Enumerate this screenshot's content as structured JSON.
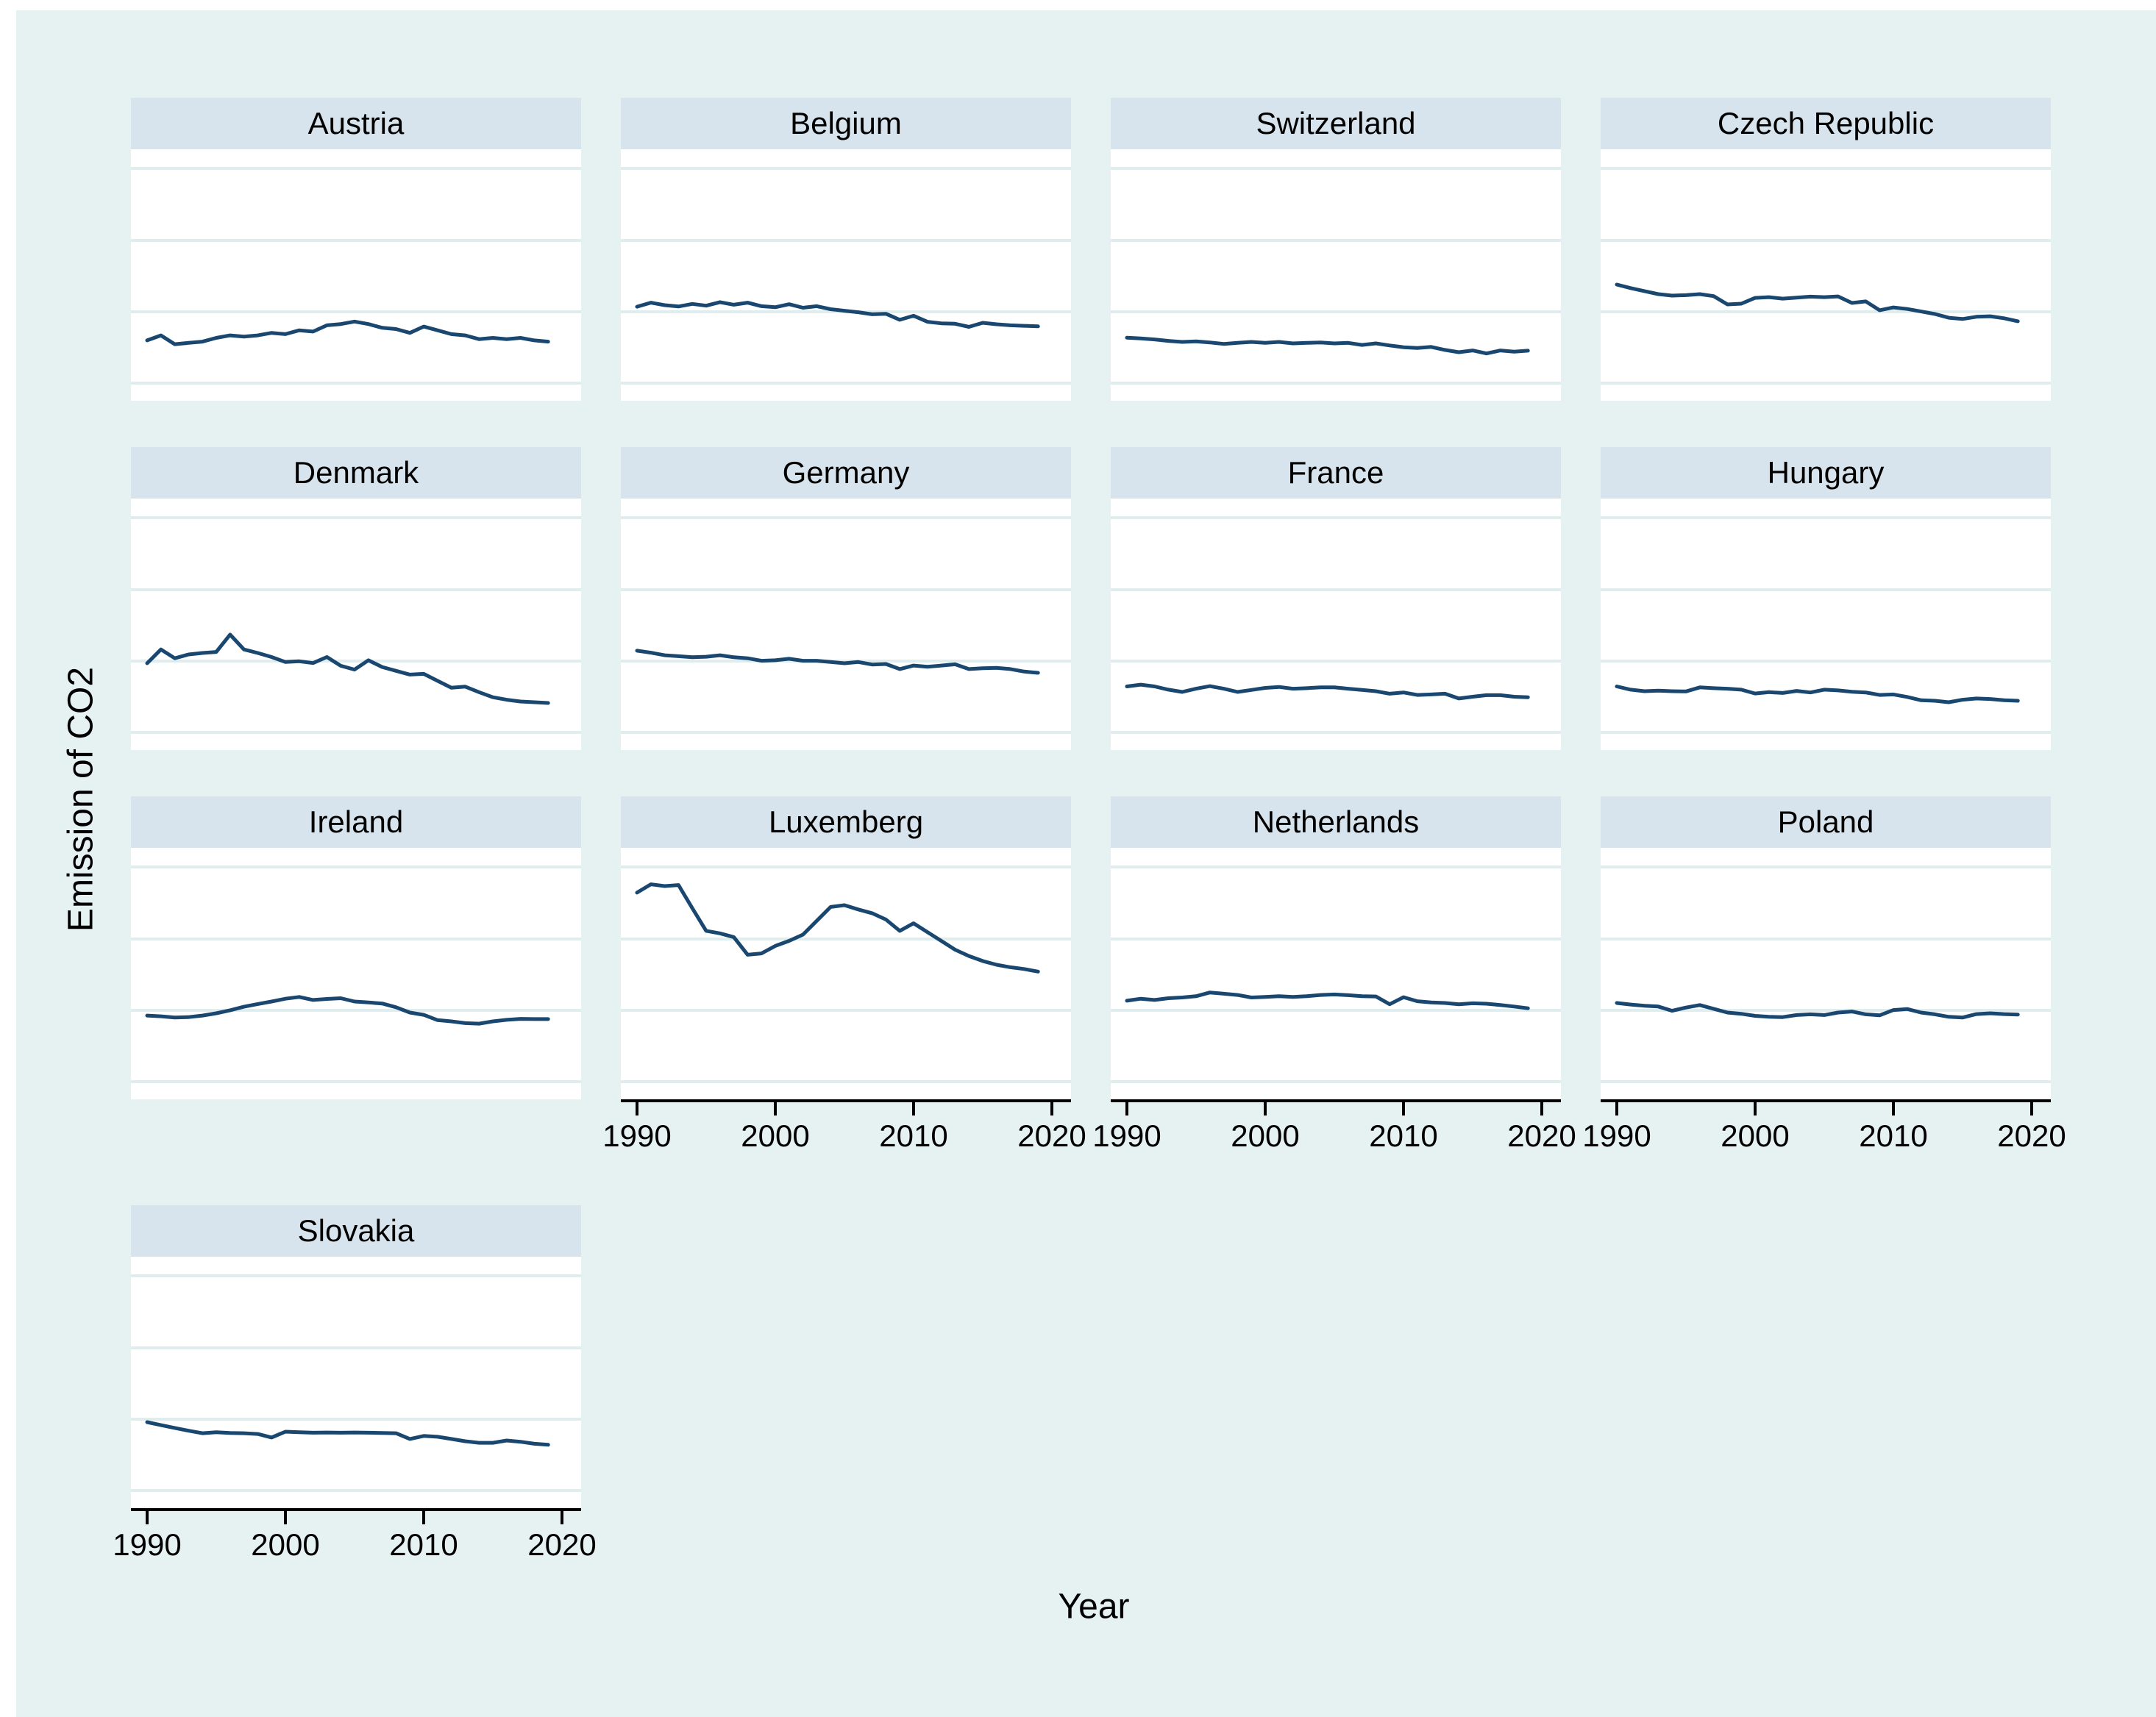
{
  "figure": {
    "y_axis_title": "Emission of CO2",
    "x_axis_title": "Year"
  },
  "colors": {
    "background": "#e6f1f2",
    "panel_header_bg": "#d7e4ee",
    "plot_bg": "#ffffff",
    "gridline": "#e0edef",
    "series_line": "#1a476f",
    "axis": "#000000",
    "text": "#000000"
  },
  "chart_data": {
    "type": "line",
    "title": "",
    "xlabel": "Year",
    "ylabel": "Emission of CO2",
    "layout": "small multiples, 4 columns, one line series per country panel",
    "legend": "none",
    "grid": true,
    "x_ticks": [
      1990,
      2000,
      2010,
      2020
    ],
    "x_range": [
      1990,
      2019
    ],
    "x_step_years": 1,
    "y_note": "y-axis has no tick labels in source image; values below are relative units (0-100 of panel plot height, measured from plot bottom)",
    "ylim": [
      0,
      100
    ],
    "panels": [
      {
        "title": "Austria",
        "values": [
          24,
          26,
          22.5,
          23,
          23.5,
          25,
          26,
          25.5,
          26,
          27,
          26.5,
          28,
          27.5,
          30,
          30.5,
          31.5,
          30.5,
          29,
          28.5,
          27,
          29.5,
          28,
          26.5,
          26,
          24.5,
          25,
          24.5,
          25,
          24,
          23.5
        ]
      },
      {
        "title": "Belgium",
        "values": [
          37.4,
          39,
          38,
          37.5,
          38.5,
          37.8,
          39.2,
          38.2,
          39,
          37.6,
          37.2,
          38.4,
          37,
          37.6,
          36.4,
          35.8,
          35.2,
          34.4,
          34.6,
          32.2,
          33.8,
          31.4,
          30.8,
          30.6,
          29.4,
          31,
          30.4,
          30,
          29.8,
          29.6
        ]
      },
      {
        "title": "Switzerland",
        "values": [
          25.1,
          24.8,
          24.4,
          23.8,
          23.4,
          23.6,
          23.2,
          22.6,
          23,
          23.4,
          23,
          23.4,
          22.8,
          23,
          23.2,
          22.8,
          23,
          22.2,
          22.8,
          22,
          21.3,
          21,
          21.4,
          20.2,
          19.3,
          20,
          18.8,
          20,
          19.5,
          19.9
        ]
      },
      {
        "title": "Czech Republic",
        "values": [
          46.2,
          44.8,
          43.6,
          42.4,
          41.8,
          42,
          42.4,
          41.6,
          38.3,
          38.6,
          40.9,
          41.2,
          40.6,
          41,
          41.4,
          41.2,
          41.5,
          38.9,
          39.5,
          36,
          37.1,
          36.5,
          35.5,
          34.5,
          33,
          32.5,
          33.4,
          33.6,
          32.8,
          31.6
        ]
      },
      {
        "title": "Denmark",
        "values": [
          34.5,
          40,
          36.5,
          38,
          38.6,
          39,
          45.9,
          40,
          38.6,
          37,
          35,
          35.3,
          34.6,
          37,
          33.5,
          32,
          35.7,
          33,
          31.5,
          30,
          30.3,
          27.5,
          24.8,
          25.2,
          23,
          21,
          20,
          19.3,
          19,
          18.7
        ]
      },
      {
        "title": "Germany",
        "values": [
          39.5,
          38.7,
          37.7,
          37.3,
          36.9,
          37.1,
          37.7,
          36.9,
          36.5,
          35.5,
          35.7,
          36.3,
          35.5,
          35.5,
          35,
          34.5,
          35,
          34,
          34.2,
          32.2,
          33.6,
          33.1,
          33.6,
          34.1,
          32.2,
          32.5,
          32.7,
          32.2,
          31.2,
          30.7
        ]
      },
      {
        "title": "France",
        "values": [
          25.3,
          26,
          25.3,
          24,
          23.1,
          24.4,
          25.4,
          24.4,
          23.1,
          23.9,
          24.7,
          25.1,
          24.4,
          24.6,
          24.9,
          24.9,
          24.4,
          23.9,
          23.4,
          22.4,
          22.9,
          21.9,
          22.1,
          22.4,
          20.5,
          21.2,
          21.8,
          21.8,
          21.2,
          21
        ]
      },
      {
        "title": "Hungary",
        "values": [
          25.3,
          24,
          23.4,
          23.6,
          23.4,
          23.3,
          24.9,
          24.6,
          24.4,
          24,
          22.5,
          23,
          22.7,
          23.5,
          22.9,
          24,
          23.7,
          23.2,
          22.9,
          21.9,
          22.1,
          21.1,
          19.8,
          19.6,
          19,
          20,
          20.5,
          20.3,
          19.8,
          19.6
        ]
      },
      {
        "title": "Ireland",
        "values": [
          33.3,
          33,
          32.5,
          32.7,
          33.3,
          34.2,
          35.4,
          36.8,
          37.9,
          38.9,
          40,
          40.7,
          39.5,
          39.9,
          40.2,
          38.9,
          38.5,
          38.1,
          36.6,
          34.5,
          33.6,
          31.5,
          31,
          30.3,
          30.1,
          31,
          31.6,
          32,
          31.9,
          31.9
        ]
      },
      {
        "title": "Luxemberg",
        "values": [
          82.2,
          85.5,
          84.8,
          85.2,
          76,
          67,
          66,
          64.5,
          57.5,
          58,
          61,
          63,
          65.5,
          71,
          76.5,
          77.2,
          75.5,
          74,
          71.5,
          67,
          70,
          66.5,
          63,
          59.5,
          57,
          55,
          53.5,
          52.5,
          51.8,
          50.8
        ]
      },
      {
        "title": "Netherlands",
        "values": [
          39.2,
          40,
          39.5,
          40.2,
          40.5,
          41,
          42.5,
          42,
          41.5,
          40.5,
          40.7,
          41,
          40.7,
          41,
          41.5,
          41.7,
          41.4,
          41,
          40.9,
          37.8,
          40.6,
          39,
          38.5,
          38.3,
          37.8,
          38.2,
          38,
          37.5,
          36.9,
          36.2
        ]
      },
      {
        "title": "Poland",
        "values": [
          38.3,
          37.7,
          37.2,
          36.9,
          35.2,
          36.5,
          37.5,
          36,
          34.5,
          34,
          33.2,
          32.8,
          32.7,
          33.5,
          33.8,
          33.5,
          34.5,
          34.9,
          33.8,
          33.4,
          35.5,
          35.9,
          34.5,
          33.8,
          32.8,
          32.5,
          33.9,
          34.2,
          33.9,
          33.7
        ]
      },
      {
        "title": "Slovakia",
        "values": [
          34.2,
          33,
          31.9,
          30.8,
          29.8,
          30.2,
          29.9,
          29.8,
          29.5,
          28.1,
          30.4,
          30.2,
          30,
          30.1,
          30,
          30.1,
          30,
          29.9,
          29.8,
          27.5,
          28.7,
          28.4,
          27.5,
          26.6,
          26,
          26,
          26.9,
          26.4,
          25.6,
          25.2
        ]
      }
    ]
  }
}
